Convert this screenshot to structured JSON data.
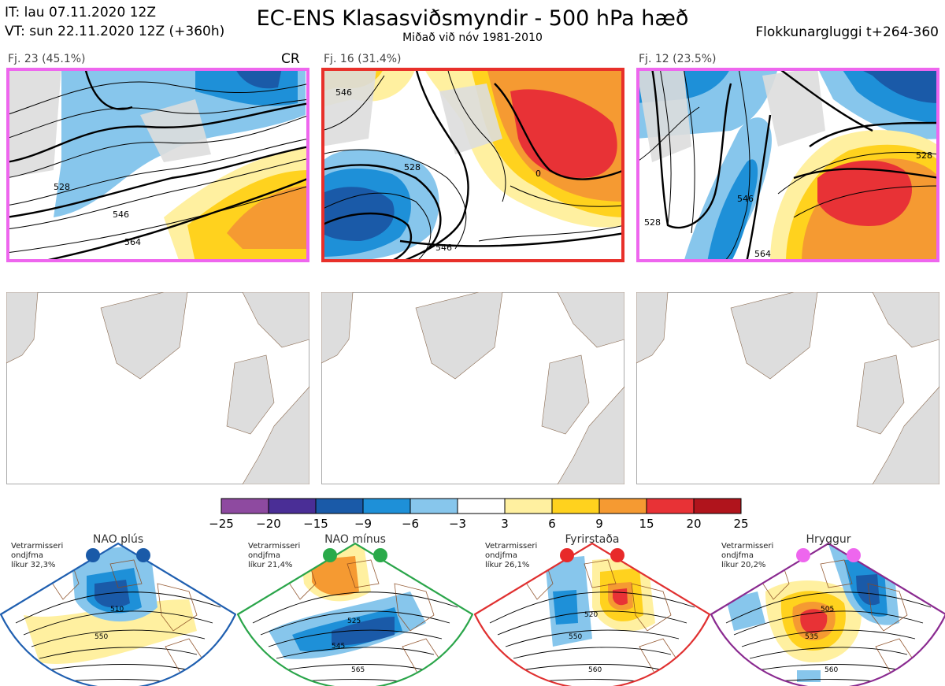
{
  "header": {
    "issue_time": "IT: lau 07.11.2020 12Z",
    "valid_time": "VT: sun 22.11.2020 12Z  (+360h)",
    "title": "EC-ENS Klasasviðsmyndir - 500 hPa hæð",
    "subtitle": "Miðað við nóv 1981-2010",
    "window": "Flokkunargluggi t+264-360"
  },
  "clusters": [
    {
      "label": "Fj. 23 (45.1%)",
      "tag": "CR",
      "frame_color": "#ee66ee",
      "contours": [
        "528",
        "546",
        "564"
      ]
    },
    {
      "label": "Fj. 16 (31.4%)",
      "tag": "",
      "frame_color": "#e8302a",
      "contours": [
        "528",
        "546",
        "546",
        "0"
      ]
    },
    {
      "label": "Fj. 12 (23.5%)",
      "tag": "",
      "frame_color": "#ee66ee",
      "contours": [
        "528",
        "546",
        "564",
        "528"
      ]
    }
  ],
  "colorbar": {
    "ticks": [
      "−25",
      "−20",
      "−15",
      "−9",
      "−6",
      "−3",
      "3",
      "6",
      "9",
      "15",
      "20",
      "25"
    ],
    "colors": [
      "#8e4aa0",
      "#4a2e96",
      "#1a5aa8",
      "#1e90d8",
      "#87c6ec",
      "#ffffff",
      "#fff0a0",
      "#ffd21e",
      "#f59a32",
      "#e83236",
      "#b0141c"
    ]
  },
  "regimes": [
    {
      "name": "NAO plús",
      "line1": "Vetrarmisseri",
      "line2": "ondjfma",
      "line3": "líkur 32,3%",
      "color": "#1f5fb0",
      "dot_color": "#1a5aa8",
      "contours": [
        "510",
        "550"
      ]
    },
    {
      "name": "NAO mínus",
      "line1": "Vetrarmisseri",
      "line2": "ondjfma",
      "line3": "líkur 21,4%",
      "color": "#2aa54a",
      "dot_color": "#2aaa4a",
      "contours": [
        "525",
        "545",
        "565"
      ]
    },
    {
      "name": "Fyrirstaða",
      "line1": "Vetrarmisseri",
      "line2": "ondjfma",
      "line3": "líkur 26,1%",
      "color": "#e03030",
      "dot_color": "#e82a2a",
      "contours": [
        "520",
        "550",
        "560"
      ]
    },
    {
      "name": "Hryggur",
      "line1": "Vetrarmisseri",
      "line2": "ondjfma",
      "line3": "líkur 20,2%",
      "color": "#8a2a90",
      "dot_color": "#ee66ee",
      "contours": [
        "505",
        "535",
        "560"
      ]
    }
  ]
}
